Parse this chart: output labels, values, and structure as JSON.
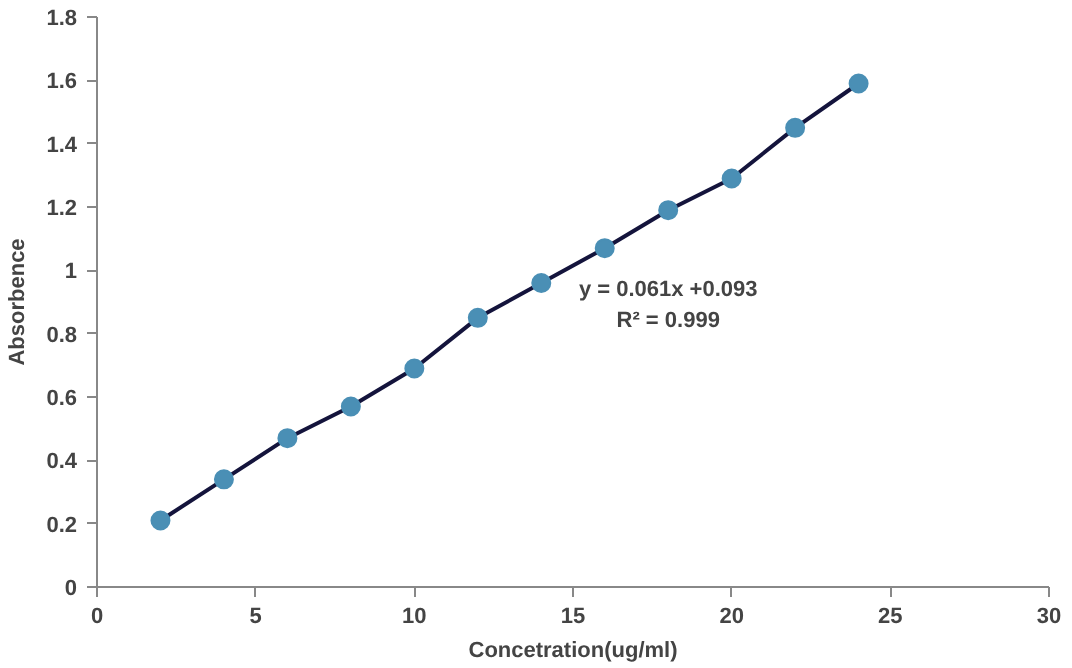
{
  "chart_data": {
    "type": "scatter",
    "xlabel": "Concetration(ug/ml)",
    "ylabel": "Absorbence",
    "x": [
      2,
      4,
      6,
      8,
      10,
      12,
      14,
      16,
      18,
      20,
      22,
      24
    ],
    "series": [
      {
        "type": "line",
        "marker": "none",
        "color": "#14143c",
        "values": [
          0.21,
          0.34,
          0.47,
          0.57,
          0.69,
          0.85,
          0.96,
          1.07,
          1.19,
          1.29,
          1.45,
          1.59
        ]
      },
      {
        "marker": "circle",
        "color": "#4a8fb5",
        "values": [
          0.21,
          0.34,
          0.47,
          0.57,
          0.69,
          0.85,
          0.96,
          1.07,
          1.19,
          1.29,
          1.45,
          1.59
        ]
      }
    ],
    "xlim": [
      0,
      30
    ],
    "xticks": [
      0,
      5,
      10,
      15,
      20,
      25,
      30
    ],
    "ylim": [
      0,
      1.8
    ],
    "yticks": [
      0,
      0.2,
      0.4,
      0.6,
      0.8,
      1,
      1.2,
      1.4,
      1.6,
      1.8
    ],
    "annotations": [
      "y = 0.061x +0.093",
      "R² = 0.999"
    ]
  }
}
